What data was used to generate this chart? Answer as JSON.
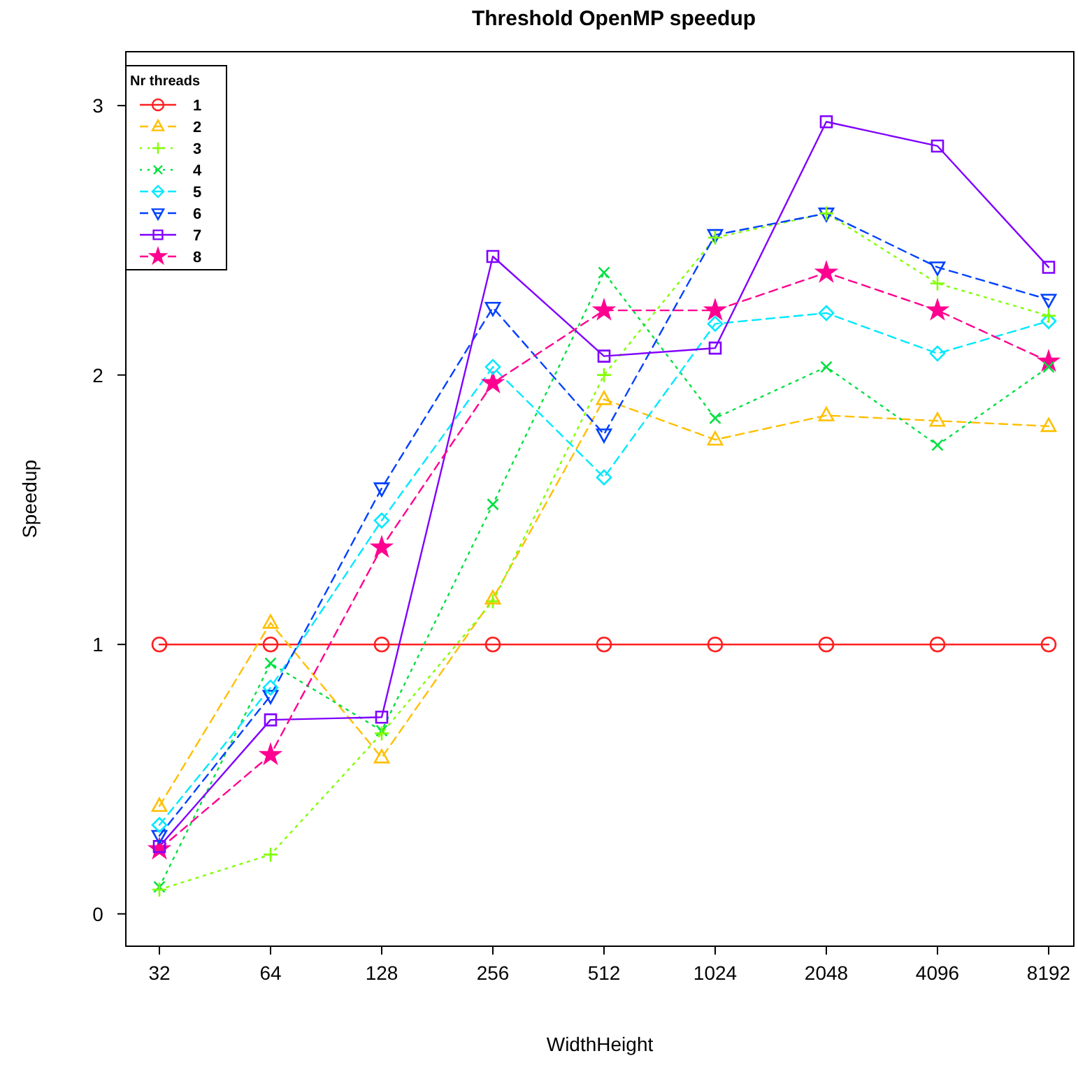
{
  "chart_data": {
    "type": "line",
    "title": "Threshold OpenMP speedup",
    "xlabel": "WidthHeight",
    "ylabel": "Speedup",
    "legend_title": "Nr threads",
    "legend": "top left",
    "grid": false,
    "categories": [
      "32",
      "64",
      "128",
      "256",
      "512",
      "1024",
      "2048",
      "4096",
      "8192"
    ],
    "ylim": [
      -0.12,
      3.2
    ],
    "yticks": [
      0,
      1,
      2,
      3
    ],
    "series": [
      {
        "name": "1",
        "color": "#ff2020",
        "marker": "circle",
        "line_style": "solid",
        "values": [
          1,
          1,
          1,
          1,
          1,
          1,
          1,
          1,
          1
        ]
      },
      {
        "name": "2",
        "color": "#ffbf00",
        "marker": "triangle",
        "line_style": "dashed",
        "values": [
          0.4,
          1.08,
          0.58,
          1.17,
          1.91,
          1.76,
          1.85,
          1.83,
          1.81
        ]
      },
      {
        "name": "3",
        "color": "#80ff00",
        "marker": "cross",
        "line_style": "dotted",
        "values": [
          0.09,
          0.22,
          0.67,
          1.16,
          2.0,
          2.51,
          2.6,
          2.34,
          2.22
        ]
      },
      {
        "name": "4",
        "color": "#00e040",
        "marker": "x",
        "line_style": "dotted",
        "values": [
          0.1,
          0.93,
          0.68,
          1.52,
          2.38,
          1.84,
          2.03,
          1.74,
          2.03
        ]
      },
      {
        "name": "5",
        "color": "#00e8ff",
        "marker": "diamond",
        "line_style": "dashed",
        "values": [
          0.33,
          0.84,
          1.46,
          2.03,
          1.62,
          2.19,
          2.23,
          2.08,
          2.2
        ]
      },
      {
        "name": "6",
        "color": "#0040ff",
        "marker": "triangle-down",
        "line_style": "dashed",
        "values": [
          0.29,
          0.81,
          1.58,
          2.25,
          1.78,
          2.52,
          2.6,
          2.4,
          2.28
        ]
      },
      {
        "name": "7",
        "color": "#8000ff",
        "marker": "square",
        "line_style": "solid",
        "values": [
          0.25,
          0.72,
          0.73,
          2.44,
          2.07,
          2.1,
          2.94,
          2.85,
          2.4
        ]
      },
      {
        "name": "8",
        "color": "#ff0090",
        "marker": "star",
        "line_style": "dashed",
        "values": [
          0.24,
          0.59,
          1.36,
          1.97,
          2.24,
          2.24,
          2.38,
          2.24,
          2.05
        ]
      }
    ]
  }
}
